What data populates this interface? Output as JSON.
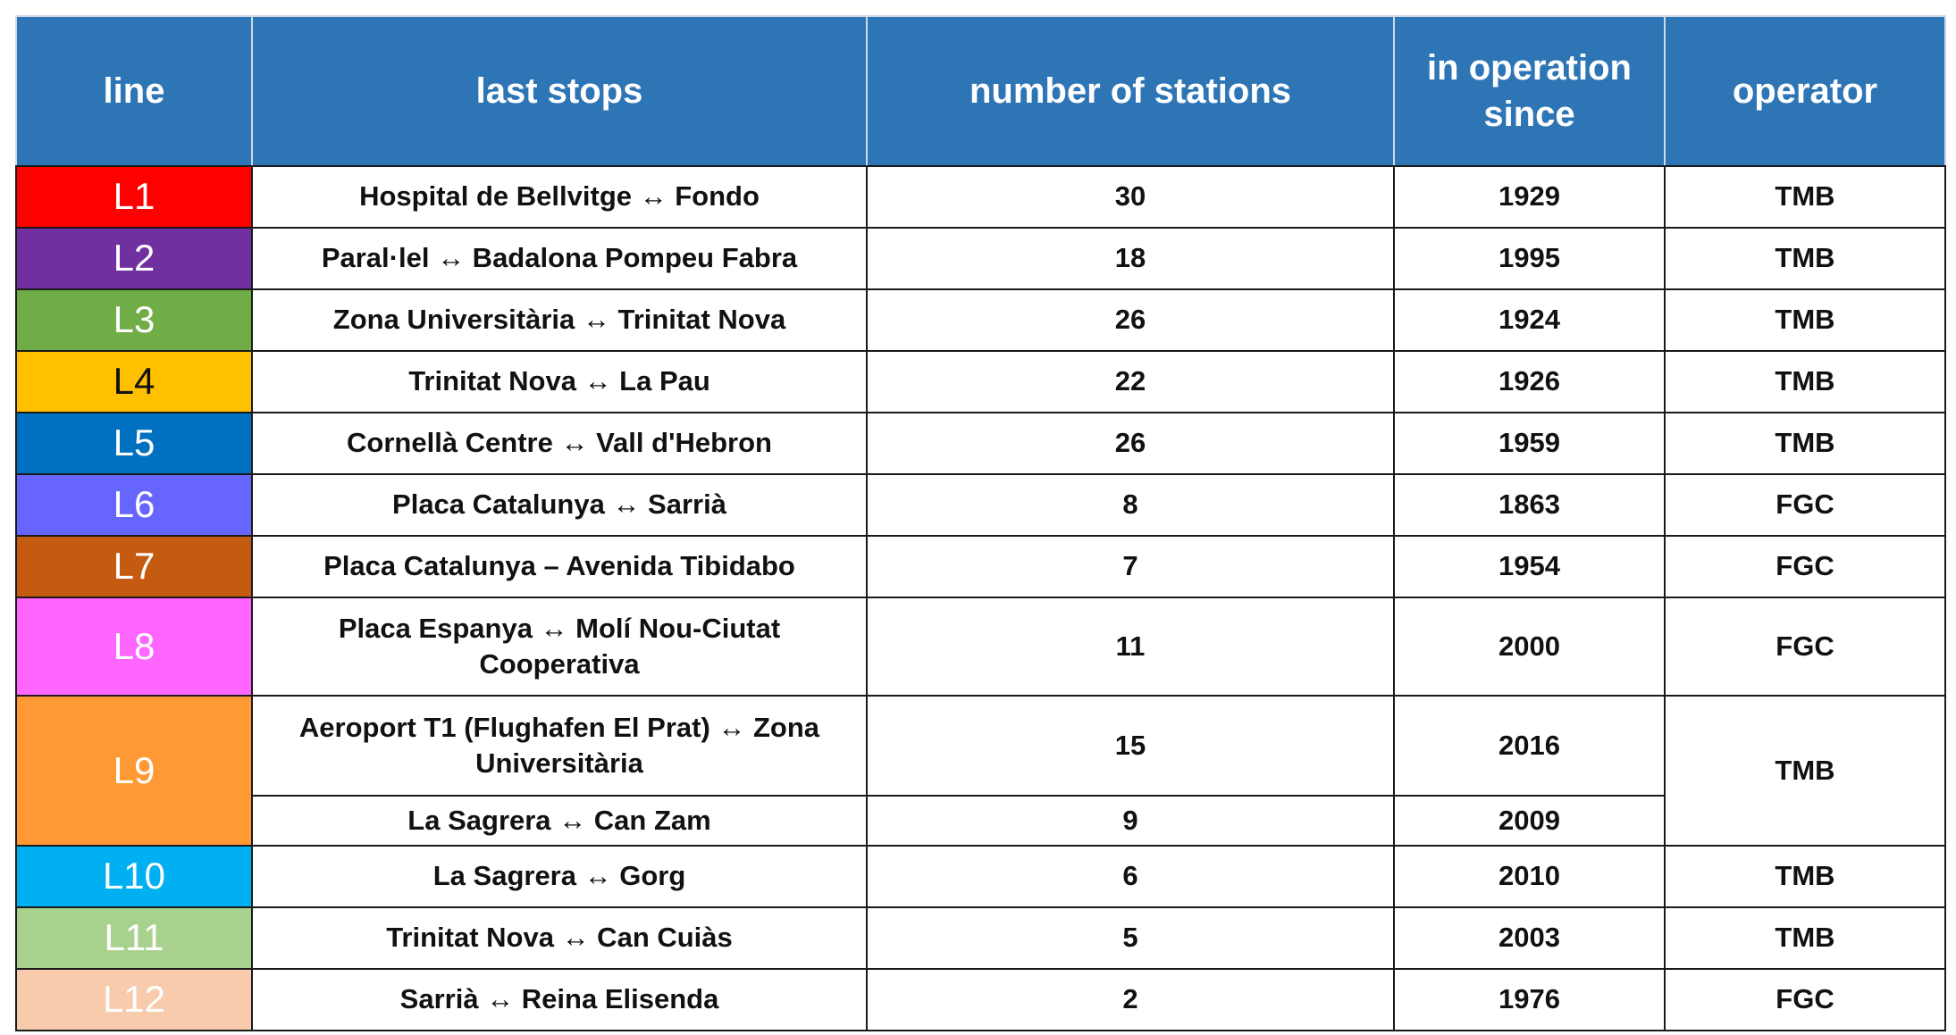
{
  "table": {
    "header": [
      "line",
      "last stops",
      "number of stations",
      "in operation since",
      "operator"
    ],
    "rows": [
      [
        "L1",
        "Hospital de Bellvitge ↔ Fondo",
        30,
        1929,
        "TMB"
      ],
      [
        "L2",
        "Paral·lel ↔ Badalona Pompeu Fabra",
        18,
        1995,
        "TMB"
      ],
      [
        "L3",
        "Zona Universitària ↔ Trinitat Nova",
        26,
        1924,
        "TMB"
      ],
      [
        "L4",
        "Trinitat Nova ↔ La Pau",
        22,
        1926,
        "TMB"
      ],
      [
        "L5",
        "Cornellà Centre ↔ Vall d'Hebron",
        26,
        1959,
        "TMB"
      ],
      [
        "L6",
        "Placa Catalunya ↔ Sarrià",
        8,
        1863,
        "FGC"
      ],
      [
        "L7",
        "Placa Catalunya – Avenida Tibidabo",
        7,
        1954,
        "FGC"
      ],
      [
        "L8",
        "Placa Espanya ↔ Molí Nou-Ciutat Cooperativa",
        11,
        2000,
        "FGC"
      ],
      [
        "L9",
        "Aeroport T1 (Flughafen El Prat) ↔ Zona Universitària",
        15,
        2016,
        "TMB"
      ],
      [
        "La Sagrera ↔ Can Zam",
        9,
        2009
      ],
      [
        "L10",
        "La Sagrera ↔ Gorg",
        6,
        2010,
        "TMB"
      ],
      [
        "L11",
        "Trinitat Nova ↔ Can Cuiàs",
        5,
        2003,
        "TMB"
      ],
      [
        "L12",
        "Sarrià ↔ Reina Elisenda",
        2,
        1976,
        "FGC"
      ]
    ]
  }
}
